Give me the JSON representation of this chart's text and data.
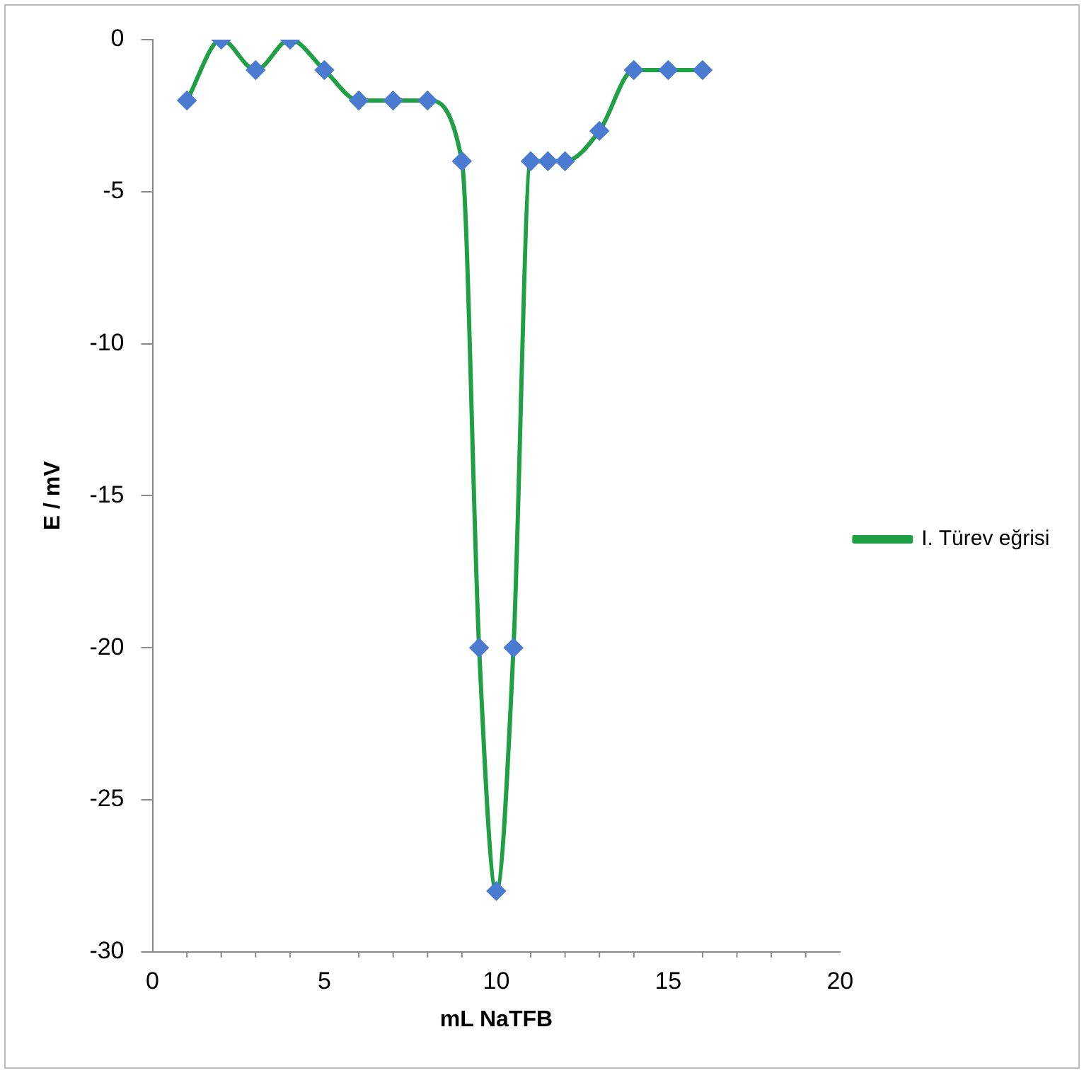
{
  "chart_data": {
    "type": "line",
    "xlabel": "mL NaTFB",
    "ylabel": "E / mV",
    "x": [
      1,
      2,
      3,
      4,
      5,
      6,
      7,
      8,
      9,
      9.5,
      10,
      10.5,
      11,
      11.5,
      12,
      13,
      14,
      15,
      16
    ],
    "series": [
      {
        "name": "I. Türev eğrisi",
        "color": "#1fa045",
        "values": [
          -2,
          0,
          -1,
          0,
          -1,
          -2,
          -2,
          -2,
          -4,
          -20,
          -28,
          -20,
          -4,
          -4,
          -4,
          -3,
          -1,
          -1,
          -1
        ]
      }
    ],
    "xlim": [
      0,
      20
    ],
    "xticks": [
      0,
      5,
      10,
      15,
      20
    ],
    "ylim": [
      -30,
      0
    ],
    "yticks": [
      -30,
      -25,
      -20,
      -15,
      -10,
      -5,
      0
    ],
    "grid": false,
    "legend": "right",
    "marker": "diamond",
    "line_style": "solid"
  }
}
